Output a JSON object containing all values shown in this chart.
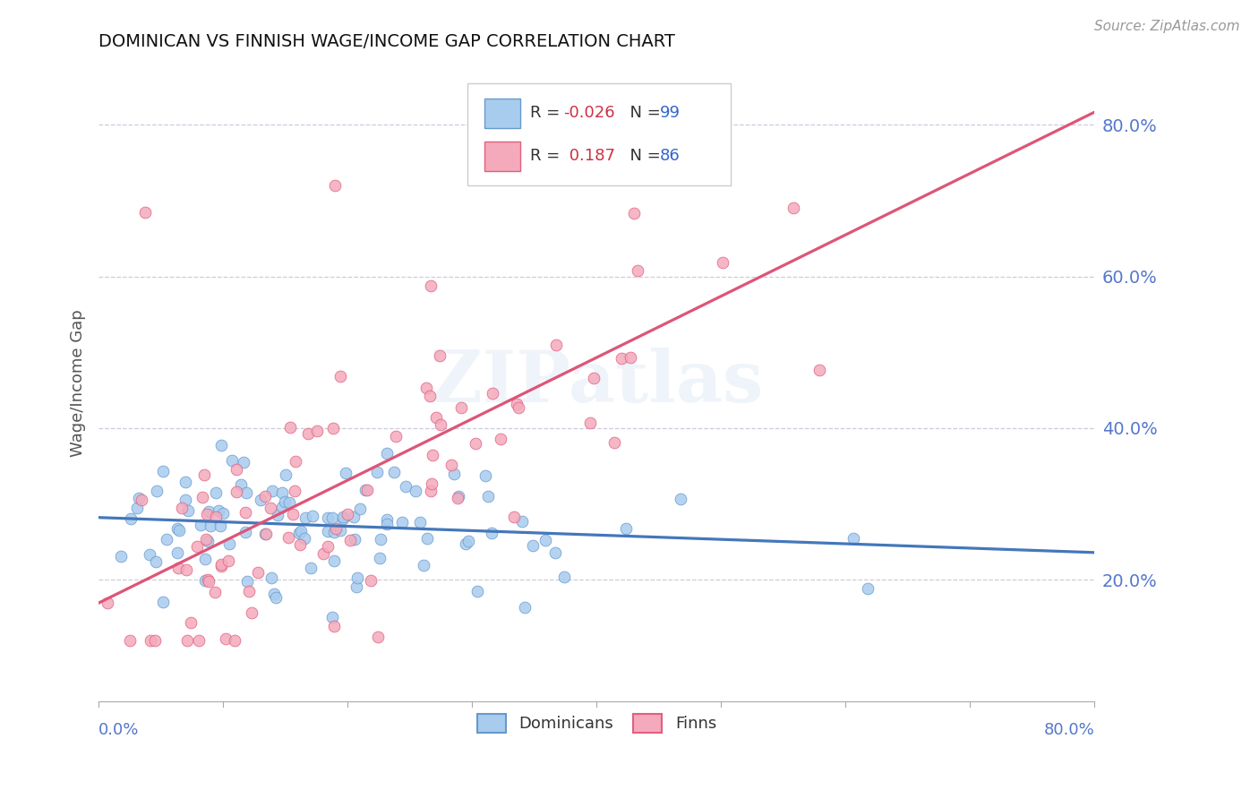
{
  "title": "DOMINICAN VS FINNISH WAGE/INCOME GAP CORRELATION CHART",
  "source": "Source: ZipAtlas.com",
  "ylabel": "Wage/Income Gap",
  "yticks": [
    0.2,
    0.4,
    0.6,
    0.8
  ],
  "ytick_labels": [
    "20.0%",
    "40.0%",
    "60.0%",
    "80.0%"
  ],
  "xlim": [
    0.0,
    0.8
  ],
  "ylim": [
    0.04,
    0.88
  ],
  "dominicans_color": "#A8CCEE",
  "finns_color": "#F4AABB",
  "dominicans_edge_color": "#6699CC",
  "finns_edge_color": "#E06080",
  "dominicans_line_color": "#4477BB",
  "finns_line_color": "#DD5577",
  "r_dominicans": -0.026,
  "n_dominicans": 99,
  "r_finns": 0.187,
  "n_finns": 86,
  "watermark": "ZIPatlas",
  "grid_color": "#CCCCDD",
  "axis_label_color": "#5577CC",
  "title_color": "#111111",
  "legend_r_color": "#CC3344",
  "legend_n_color": "#3366CC",
  "dom_seed": 42,
  "fin_seed": 13
}
